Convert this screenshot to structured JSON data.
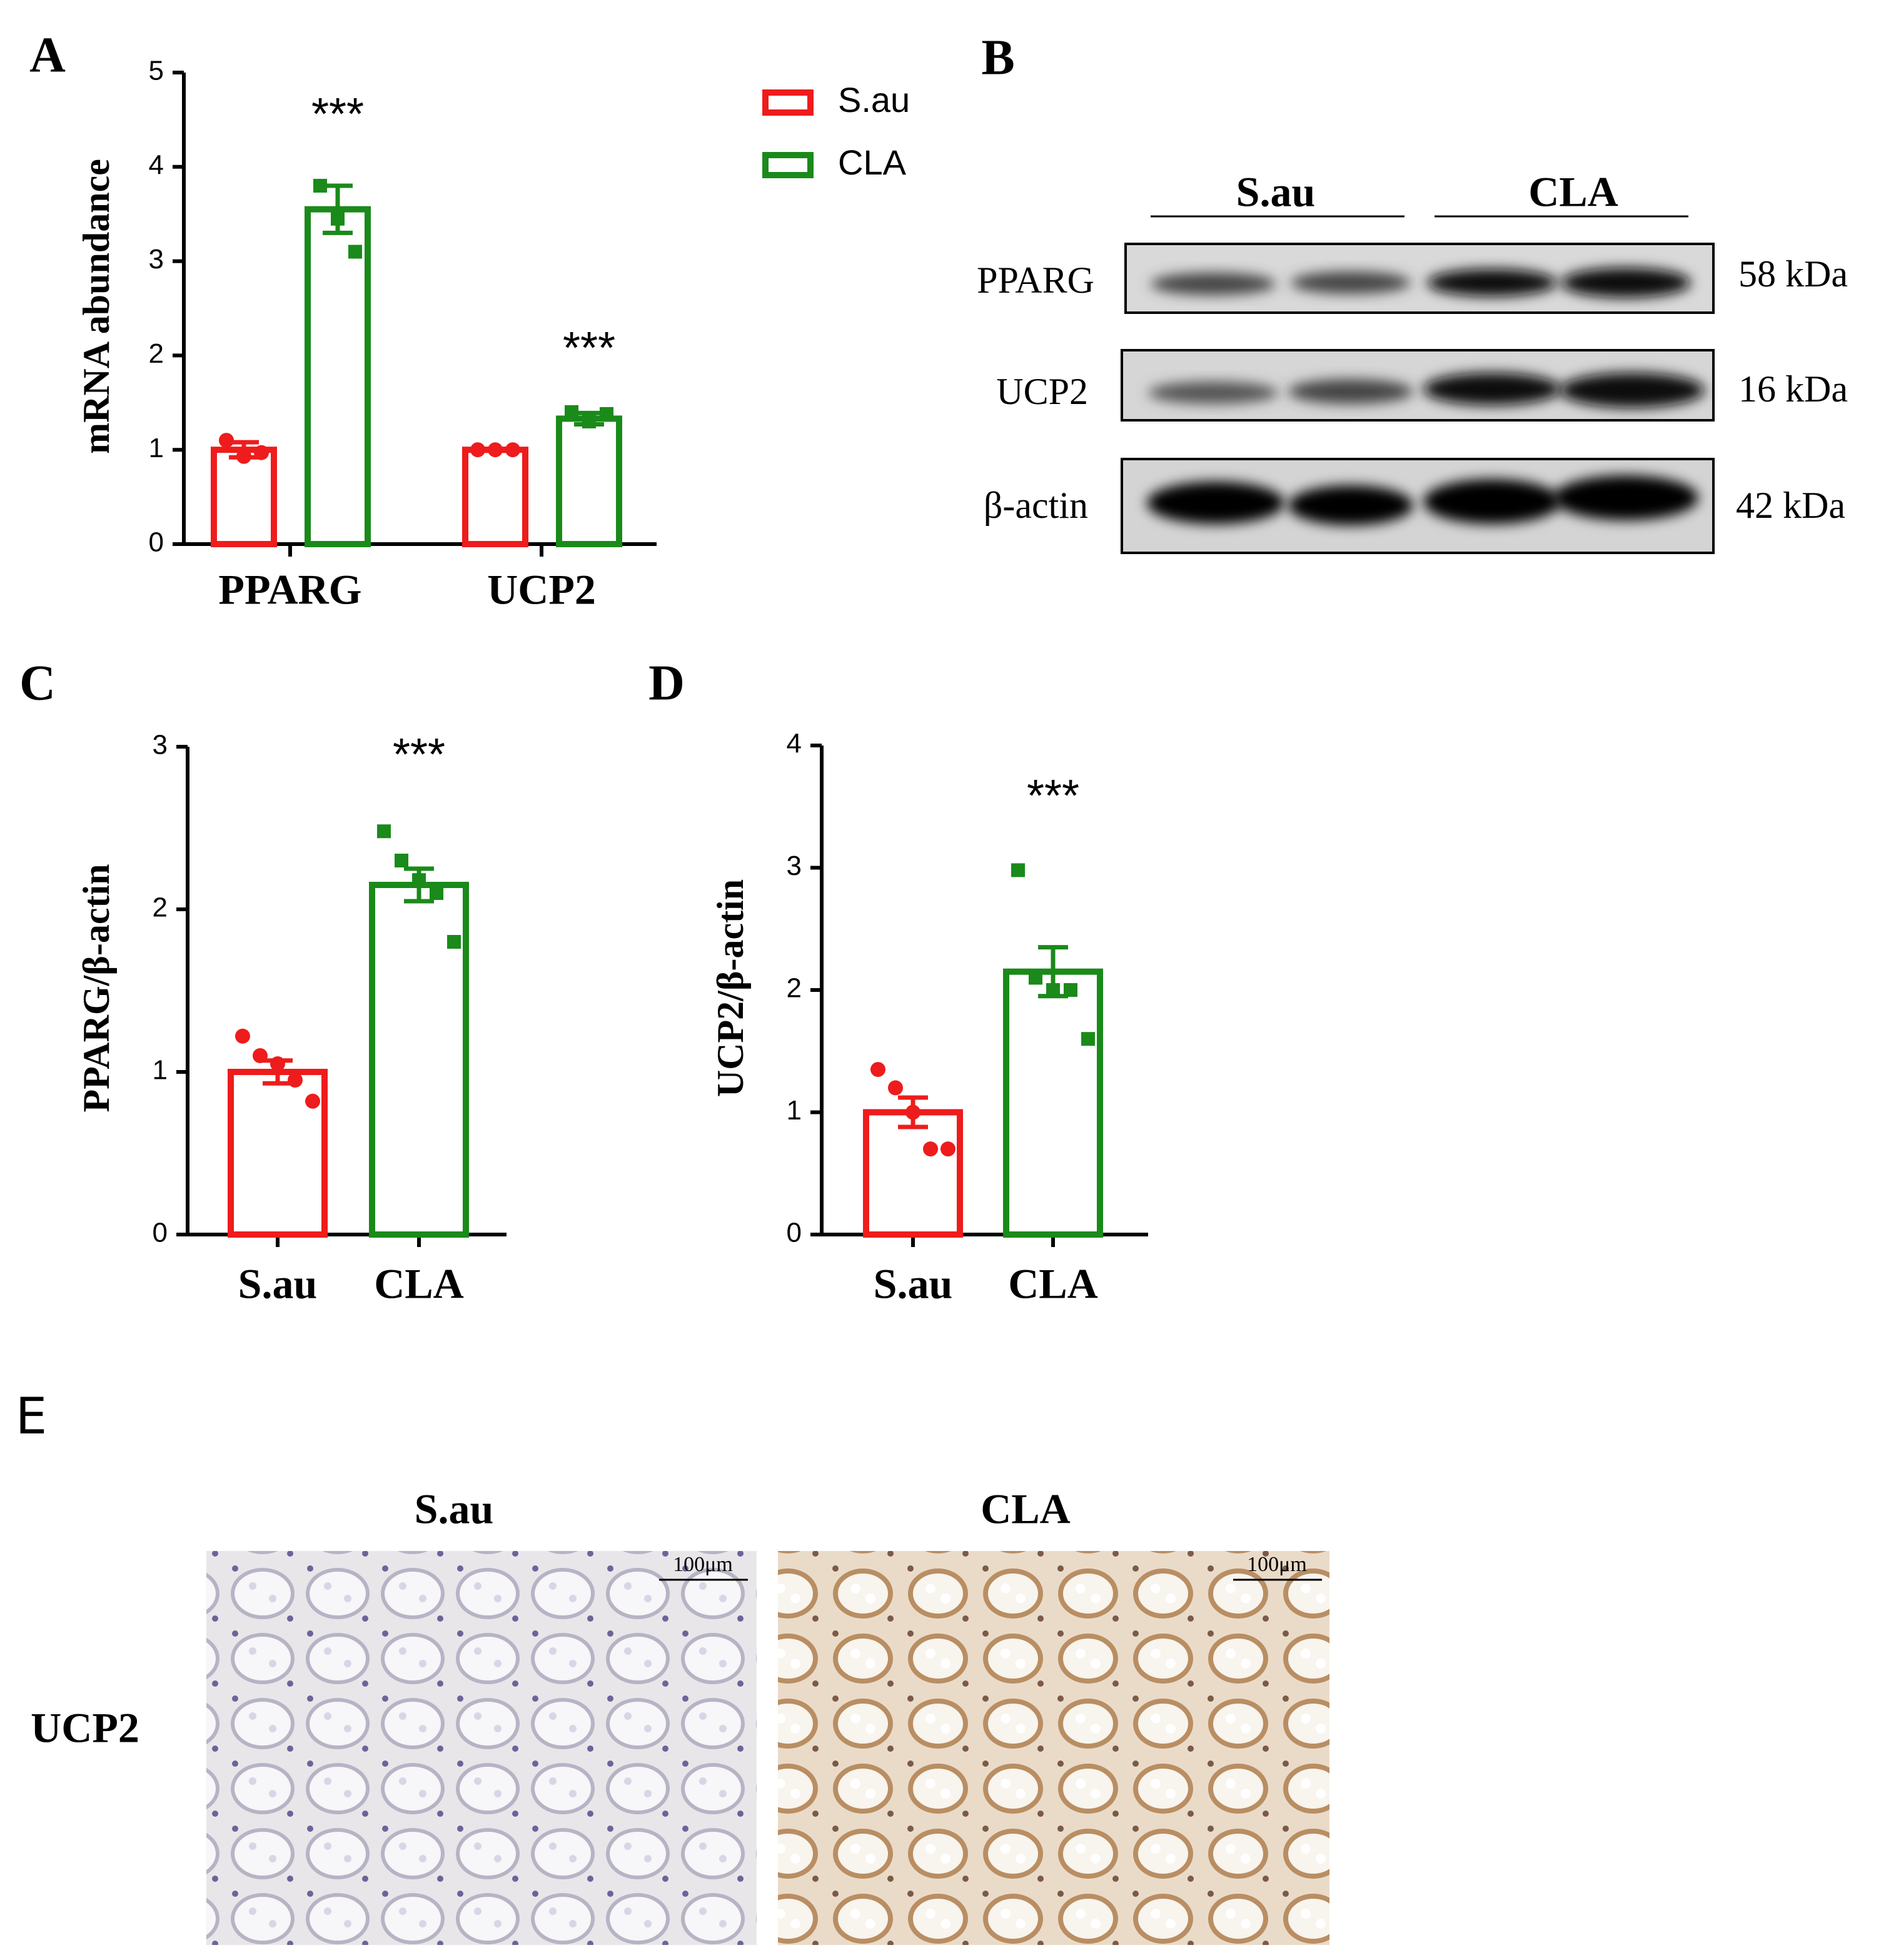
{
  "chart_data": [
    {
      "type": "bar",
      "panel": "A",
      "y_label": "mRNA abundance",
      "categories": [
        "PPARG",
        "UCP2"
      ],
      "series": [
        {
          "name": "S.au",
          "color": "#ee1c1c",
          "values": [
            1.0,
            1.0
          ],
          "errors": [
            0.08,
            0.01
          ],
          "points": [
            [
              1.1,
              0.93,
              0.97
            ],
            [
              1.0,
              1.0,
              1.0
            ]
          ]
        },
        {
          "name": "CLA",
          "color": "#1a8a1a",
          "values": [
            3.55,
            1.33
          ],
          "errors": [
            0.25,
            0.06
          ],
          "points": [
            [
              3.8,
              3.45,
              3.1
            ],
            [
              1.4,
              1.3,
              1.38
            ]
          ]
        }
      ],
      "annotations": [
        "***",
        "***"
      ],
      "ylim": [
        0,
        5
      ],
      "yticks": [
        0,
        1,
        2,
        3,
        4,
        5
      ],
      "legend": "right"
    },
    {
      "type": "bar",
      "panel": "C",
      "y_label": "PPARG/β-actin",
      "categories": [
        "S.au",
        "CLA"
      ],
      "colors": [
        "#ee1c1c",
        "#1a8a1a"
      ],
      "values": [
        1.0,
        2.15
      ],
      "errors": [
        0.07,
        0.1
      ],
      "points": [
        [
          1.22,
          1.1,
          1.05,
          0.95,
          0.82
        ],
        [
          2.48,
          2.3,
          2.18,
          2.1,
          1.8
        ]
      ],
      "annotations": [
        null,
        "***"
      ],
      "ylim": [
        0,
        3
      ],
      "yticks": [
        0,
        1,
        2,
        3
      ]
    },
    {
      "type": "bar",
      "panel": "D",
      "y_label": "UCP2/β-actin",
      "categories": [
        "S.au",
        "CLA"
      ],
      "colors": [
        "#ee1c1c",
        "#1a8a1a"
      ],
      "values": [
        1.0,
        2.15
      ],
      "errors": [
        0.12,
        0.2
      ],
      "points": [
        [
          1.35,
          1.2,
          1.0,
          0.7,
          0.7
        ],
        [
          2.98,
          2.1,
          2.0,
          2.0,
          1.6
        ]
      ],
      "annotations": [
        null,
        "***"
      ],
      "ylim": [
        0,
        4
      ],
      "yticks": [
        0,
        1,
        2,
        3,
        4
      ]
    }
  ],
  "blot": {
    "panel": "B",
    "groups": [
      "S.au",
      "CLA"
    ],
    "rows": [
      {
        "label": "PPARG",
        "size": "58 kDa"
      },
      {
        "label": "UCP2",
        "size": "16 kDa"
      },
      {
        "label": "β-actin",
        "size": "42 kDa"
      }
    ]
  },
  "histology": {
    "panel": "E",
    "columns": [
      "S.au",
      "CLA"
    ],
    "row": "UCP2",
    "scale_bar": "100μm"
  }
}
